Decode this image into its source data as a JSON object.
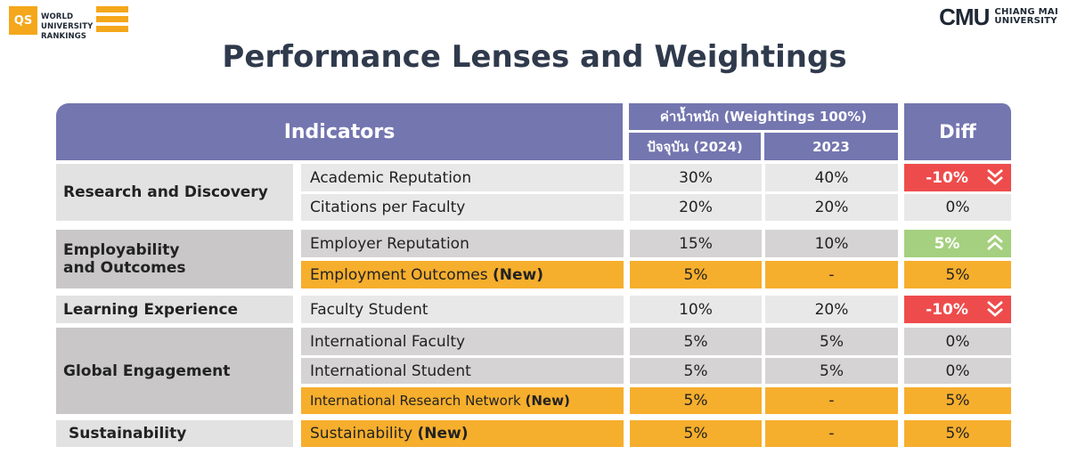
{
  "logos": {
    "qs_badge": "QS",
    "qs_lines": [
      "WORLD",
      "UNIVERSITY",
      "RANKINGS"
    ],
    "cmu_mark": "CMU",
    "cmu_lines": [
      "CHIANG MAI",
      "UNIVERSITY"
    ]
  },
  "title": "Performance Lenses and Weightings",
  "header": {
    "indicators": "Indicators",
    "weightings": "ค่าน้ำหนัก (Weightings 100%)",
    "current": "ปัจจุบัน (2024)",
    "previous": "2023",
    "diff": "Diff"
  },
  "new_tag": "(New)",
  "categories": {
    "research": "Research and Discovery",
    "employability_1": "Employability",
    "employability_2": "and Outcomes",
    "learning": "Learning Experience",
    "global": "Global Engagement",
    "sustainability": "Sustainability"
  },
  "rows": [
    {
      "indicator": "Academic Reputation",
      "new": false,
      "current": "30%",
      "previous": "40%",
      "diff": "-10%",
      "trend": "down"
    },
    {
      "indicator": "Citations per Faculty",
      "new": false,
      "current": "20%",
      "previous": "20%",
      "diff": "0%",
      "trend": "none"
    },
    {
      "indicator": "Employer Reputation",
      "new": false,
      "current": "15%",
      "previous": "10%",
      "diff": "5%",
      "trend": "up"
    },
    {
      "indicator": "Employment Outcomes",
      "new": true,
      "current": "5%",
      "previous": "-",
      "diff": "5%",
      "trend": "none"
    },
    {
      "indicator": "Faculty Student",
      "new": false,
      "current": "10%",
      "previous": "20%",
      "diff": "-10%",
      "trend": "down"
    },
    {
      "indicator": "International Faculty",
      "new": false,
      "current": "5%",
      "previous": "5%",
      "diff": "0%",
      "trend": "none"
    },
    {
      "indicator": "International Student",
      "new": false,
      "current": "5%",
      "previous": "5%",
      "diff": "0%",
      "trend": "none"
    },
    {
      "indicator": "International Research Network",
      "new": true,
      "current": "5%",
      "previous": "-",
      "diff": "5%",
      "trend": "none"
    },
    {
      "indicator": "Sustainability",
      "new": true,
      "current": "5%",
      "previous": "-",
      "diff": "5%",
      "trend": "none"
    }
  ],
  "colors": {
    "header": "#7476b0",
    "new_row": "#f6ae2d",
    "diff_down": "#ee4c4c",
    "diff_up": "#a5d07f",
    "brand_orange": "#f4a71b"
  }
}
